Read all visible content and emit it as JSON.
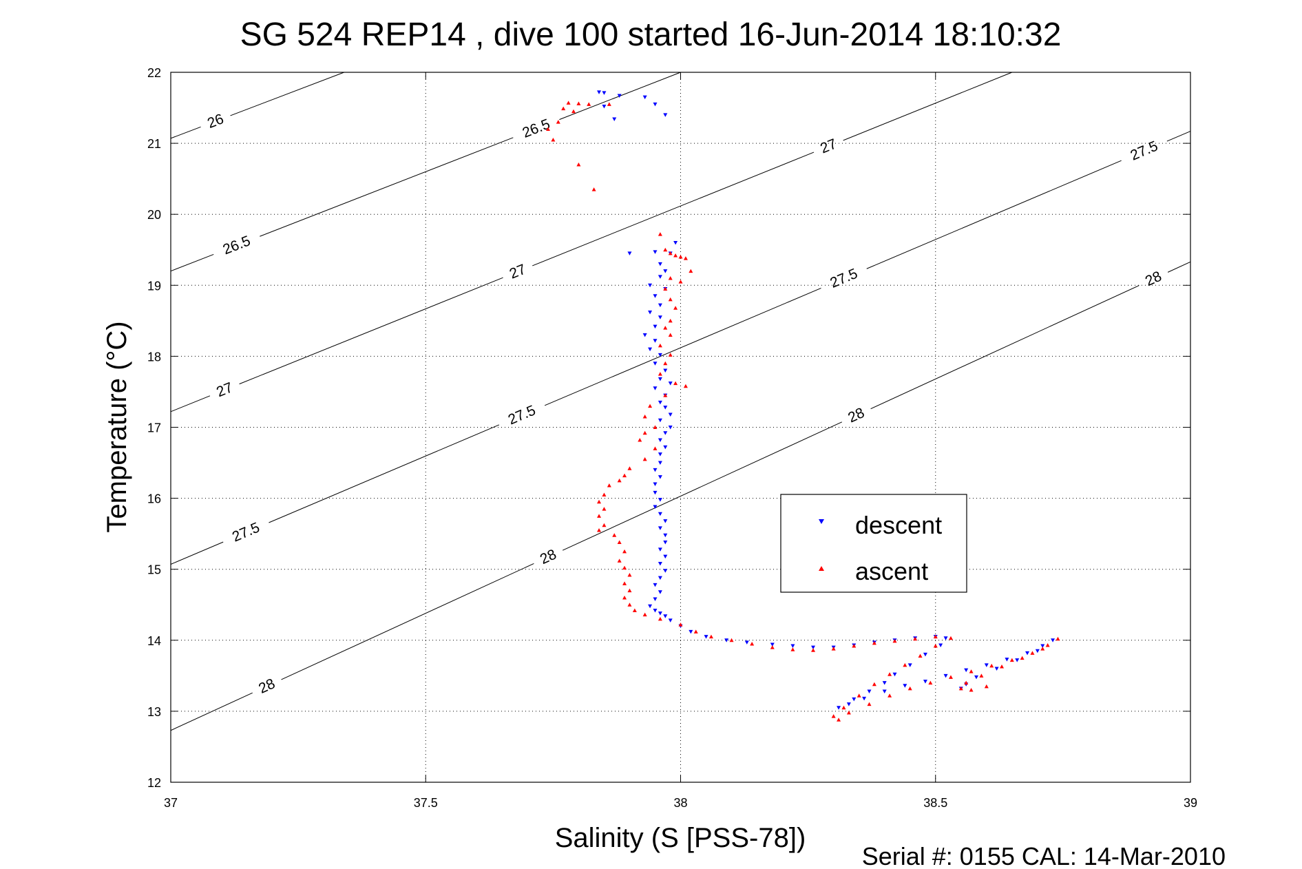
{
  "title": "SG 524   REP14  , dive 100 started 16-Jun-2014 18:10:32",
  "footer": "Serial #: 0155  CAL: 14-Mar-2010",
  "colors": {
    "descent": "#0000ff",
    "ascent": "#ff0000",
    "axis": "#000000",
    "grid": "#000000"
  },
  "chart_data": {
    "type": "scatter",
    "title": "SG 524   REP14  , dive 100 started 16-Jun-2014 18:10:32",
    "xlabel": "Salinity (S [PSS-78])",
    "ylabel": "Temperature (°C)",
    "xlim": [
      37,
      39
    ],
    "ylim": [
      12,
      22
    ],
    "xticks": [
      37,
      37.5,
      38,
      38.5,
      39
    ],
    "xtick_labels": [
      "37",
      "37.5",
      "38",
      "38.5",
      "39"
    ],
    "yticks": [
      12,
      13,
      14,
      15,
      16,
      17,
      18,
      19,
      20,
      21,
      22
    ],
    "ytick_labels": [
      "12",
      "13",
      "14",
      "15",
      "16",
      "17",
      "18",
      "19",
      "20",
      "21",
      "22"
    ],
    "grid": true,
    "legend": {
      "placement": "lower-right",
      "entries": [
        "descent",
        "ascent"
      ]
    },
    "density_contours": [
      {
        "label": "26",
        "points": [
          [
            37.0,
            21.07
          ],
          [
            37.34,
            22.0
          ]
        ],
        "label_positions": [
          [
            37.09,
            21.27
          ]
        ]
      },
      {
        "label": "26.5",
        "points": [
          [
            37.0,
            19.2
          ],
          [
            38.0,
            22.0
          ]
        ],
        "label_positions": [
          [
            37.13,
            19.55
          ],
          [
            37.72,
            21.15
          ]
        ]
      },
      {
        "label": "27",
        "points": [
          [
            37.0,
            17.22
          ],
          [
            38.65,
            22.0
          ]
        ],
        "label_positions": [
          [
            37.11,
            17.45
          ],
          [
            37.68,
            19.2
          ],
          [
            38.29,
            20.96
          ]
        ]
      },
      {
        "label": "27.5",
        "points": [
          [
            37.0,
            15.07
          ],
          [
            39.0,
            21.17
          ]
        ],
        "label_positions": [
          [
            37.15,
            15.48
          ],
          [
            37.69,
            17.15
          ],
          [
            38.32,
            19.1
          ],
          [
            38.91,
            20.88
          ]
        ]
      },
      {
        "label": "28",
        "points": [
          [
            37.0,
            12.73
          ],
          [
            39.0,
            19.33
          ]
        ],
        "label_positions": [
          [
            37.19,
            13.33
          ],
          [
            37.74,
            15.18
          ],
          [
            38.34,
            17.24
          ],
          [
            38.93,
            19.05
          ]
        ]
      }
    ],
    "series": [
      {
        "name": "descent",
        "marker": "down-triangle",
        "color": "#0000ff",
        "points": [
          [
            37.84,
            21.72
          ],
          [
            37.85,
            21.71
          ],
          [
            37.88,
            21.67
          ],
          [
            37.93,
            21.65
          ],
          [
            37.95,
            21.55
          ],
          [
            37.85,
            21.52
          ],
          [
            37.97,
            21.4
          ],
          [
            37.87,
            21.34
          ],
          [
            37.99,
            19.6
          ],
          [
            37.98,
            19.45
          ],
          [
            37.95,
            19.47
          ],
          [
            37.9,
            19.45
          ],
          [
            37.96,
            19.3
          ],
          [
            37.97,
            19.2
          ],
          [
            37.96,
            19.12
          ],
          [
            37.94,
            19.0
          ],
          [
            37.97,
            18.95
          ],
          [
            37.95,
            18.85
          ],
          [
            37.96,
            18.72
          ],
          [
            37.94,
            18.62
          ],
          [
            37.96,
            18.55
          ],
          [
            37.95,
            18.42
          ],
          [
            37.93,
            18.3
          ],
          [
            37.95,
            18.22
          ],
          [
            37.94,
            18.1
          ],
          [
            37.96,
            18.02
          ],
          [
            37.95,
            17.9
          ],
          [
            37.97,
            17.8
          ],
          [
            37.96,
            17.68
          ],
          [
            37.98,
            17.62
          ],
          [
            37.95,
            17.55
          ],
          [
            37.97,
            17.45
          ],
          [
            37.96,
            17.35
          ],
          [
            37.97,
            17.28
          ],
          [
            37.98,
            17.18
          ],
          [
            37.96,
            17.1
          ],
          [
            37.98,
            17.0
          ],
          [
            37.97,
            16.92
          ],
          [
            37.96,
            16.82
          ],
          [
            37.97,
            16.72
          ],
          [
            37.96,
            16.62
          ],
          [
            37.96,
            16.5
          ],
          [
            37.95,
            16.4
          ],
          [
            37.96,
            16.3
          ],
          [
            37.95,
            16.2
          ],
          [
            37.95,
            16.08
          ],
          [
            37.96,
            15.98
          ],
          [
            37.95,
            15.88
          ],
          [
            37.96,
            15.78
          ],
          [
            37.97,
            15.68
          ],
          [
            37.96,
            15.58
          ],
          [
            37.97,
            15.48
          ],
          [
            37.97,
            15.38
          ],
          [
            37.96,
            15.28
          ],
          [
            37.97,
            15.18
          ],
          [
            37.96,
            15.08
          ],
          [
            37.97,
            14.98
          ],
          [
            37.96,
            14.88
          ],
          [
            37.95,
            14.78
          ],
          [
            37.96,
            14.68
          ],
          [
            37.95,
            14.58
          ],
          [
            37.94,
            14.48
          ],
          [
            37.95,
            14.42
          ],
          [
            37.96,
            14.38
          ],
          [
            37.97,
            14.34
          ],
          [
            37.98,
            14.28
          ],
          [
            38.0,
            14.2
          ],
          [
            38.02,
            14.12
          ],
          [
            38.05,
            14.05
          ],
          [
            38.09,
            14.0
          ],
          [
            38.13,
            13.97
          ],
          [
            38.18,
            13.94
          ],
          [
            38.22,
            13.92
          ],
          [
            38.26,
            13.9
          ],
          [
            38.3,
            13.9
          ],
          [
            38.34,
            13.93
          ],
          [
            38.38,
            13.97
          ],
          [
            38.42,
            14.0
          ],
          [
            38.46,
            14.03
          ],
          [
            38.5,
            14.05
          ],
          [
            38.52,
            14.03
          ],
          [
            38.51,
            13.93
          ],
          [
            38.48,
            13.8
          ],
          [
            38.45,
            13.65
          ],
          [
            38.42,
            13.52
          ],
          [
            38.4,
            13.4
          ],
          [
            38.37,
            13.28
          ],
          [
            38.34,
            13.17
          ],
          [
            38.31,
            13.05
          ],
          [
            38.33,
            13.1
          ],
          [
            38.36,
            13.18
          ],
          [
            38.4,
            13.28
          ],
          [
            38.44,
            13.36
          ],
          [
            38.48,
            13.42
          ],
          [
            38.52,
            13.5
          ],
          [
            38.56,
            13.58
          ],
          [
            38.6,
            13.65
          ],
          [
            38.64,
            13.73
          ],
          [
            38.68,
            13.82
          ],
          [
            38.71,
            13.92
          ],
          [
            38.73,
            14.0
          ],
          [
            38.7,
            13.85
          ],
          [
            38.66,
            13.72
          ],
          [
            38.62,
            13.6
          ],
          [
            38.58,
            13.48
          ],
          [
            38.56,
            13.38
          ],
          [
            38.55,
            13.32
          ]
        ]
      },
      {
        "name": "ascent",
        "marker": "up-triangle",
        "color": "#ff0000",
        "points": [
          [
            37.78,
            21.57
          ],
          [
            37.8,
            21.56
          ],
          [
            37.82,
            21.55
          ],
          [
            37.86,
            21.55
          ],
          [
            37.77,
            21.49
          ],
          [
            37.74,
            21.2
          ],
          [
            37.76,
            21.3
          ],
          [
            37.79,
            21.45
          ],
          [
            37.8,
            20.7
          ],
          [
            37.83,
            20.35
          ],
          [
            37.75,
            21.05
          ],
          [
            37.96,
            19.72
          ],
          [
            37.97,
            19.5
          ],
          [
            37.98,
            19.45
          ],
          [
            37.99,
            19.42
          ],
          [
            38.0,
            19.4
          ],
          [
            38.01,
            19.38
          ],
          [
            38.02,
            19.2
          ],
          [
            37.98,
            19.1
          ],
          [
            38.0,
            19.05
          ],
          [
            37.97,
            18.95
          ],
          [
            37.98,
            18.8
          ],
          [
            37.99,
            18.68
          ],
          [
            37.98,
            18.5
          ],
          [
            37.97,
            18.4
          ],
          [
            37.98,
            18.3
          ],
          [
            37.96,
            18.15
          ],
          [
            37.98,
            18.02
          ],
          [
            37.97,
            17.9
          ],
          [
            37.96,
            17.75
          ],
          [
            37.99,
            17.62
          ],
          [
            38.01,
            17.58
          ],
          [
            37.97,
            17.45
          ],
          [
            37.94,
            17.3
          ],
          [
            37.93,
            17.15
          ],
          [
            37.95,
            17.0
          ],
          [
            37.93,
            16.92
          ],
          [
            37.92,
            16.82
          ],
          [
            37.95,
            16.7
          ],
          [
            37.93,
            16.55
          ],
          [
            37.9,
            16.42
          ],
          [
            37.89,
            16.32
          ],
          [
            37.88,
            16.25
          ],
          [
            37.86,
            16.18
          ],
          [
            37.85,
            16.05
          ],
          [
            37.84,
            15.95
          ],
          [
            37.85,
            15.85
          ],
          [
            37.84,
            15.75
          ],
          [
            37.85,
            15.62
          ],
          [
            37.84,
            15.55
          ],
          [
            37.87,
            15.48
          ],
          [
            37.88,
            15.38
          ],
          [
            37.89,
            15.25
          ],
          [
            37.88,
            15.12
          ],
          [
            37.89,
            15.02
          ],
          [
            37.9,
            14.92
          ],
          [
            37.89,
            14.8
          ],
          [
            37.9,
            14.7
          ],
          [
            37.89,
            14.6
          ],
          [
            37.9,
            14.5
          ],
          [
            37.91,
            14.42
          ],
          [
            37.93,
            14.36
          ],
          [
            37.96,
            14.3
          ],
          [
            38.0,
            14.22
          ],
          [
            38.03,
            14.12
          ],
          [
            38.06,
            14.05
          ],
          [
            38.1,
            14.0
          ],
          [
            38.14,
            13.95
          ],
          [
            38.18,
            13.9
          ],
          [
            38.22,
            13.87
          ],
          [
            38.26,
            13.86
          ],
          [
            38.3,
            13.88
          ],
          [
            38.34,
            13.92
          ],
          [
            38.38,
            13.96
          ],
          [
            38.42,
            13.99
          ],
          [
            38.46,
            14.02
          ],
          [
            38.5,
            14.05
          ],
          [
            38.53,
            14.03
          ],
          [
            38.5,
            13.92
          ],
          [
            38.47,
            13.78
          ],
          [
            38.44,
            13.65
          ],
          [
            38.41,
            13.52
          ],
          [
            38.38,
            13.38
          ],
          [
            38.35,
            13.22
          ],
          [
            38.32,
            13.05
          ],
          [
            38.3,
            12.93
          ],
          [
            38.31,
            12.88
          ],
          [
            38.33,
            12.98
          ],
          [
            38.37,
            13.1
          ],
          [
            38.41,
            13.22
          ],
          [
            38.45,
            13.32
          ],
          [
            38.49,
            13.4
          ],
          [
            38.53,
            13.48
          ],
          [
            38.57,
            13.56
          ],
          [
            38.61,
            13.64
          ],
          [
            38.65,
            13.72
          ],
          [
            38.69,
            13.82
          ],
          [
            38.72,
            13.93
          ],
          [
            38.74,
            14.02
          ],
          [
            38.71,
            13.88
          ],
          [
            38.67,
            13.75
          ],
          [
            38.63,
            13.63
          ],
          [
            38.59,
            13.5
          ],
          [
            38.56,
            13.4
          ],
          [
            38.55,
            13.32
          ],
          [
            38.57,
            13.3
          ],
          [
            38.6,
            13.35
          ]
        ]
      }
    ]
  }
}
